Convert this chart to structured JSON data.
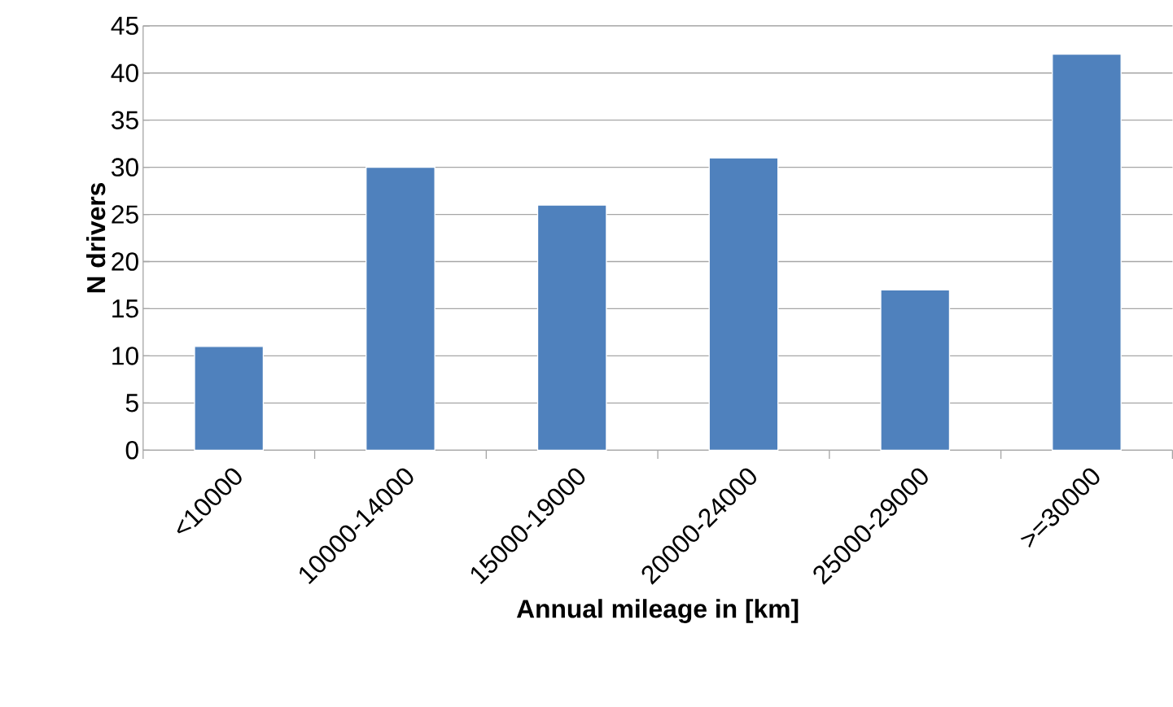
{
  "chart_data": {
    "type": "bar",
    "xlabel": "Annual mileage  in [km]",
    "ylabel": "N drivers",
    "categories": [
      "<10000",
      "10000-14000",
      "15000-19000",
      "20000-24000",
      "25000-29000",
      ">=30000"
    ],
    "values": [
      11,
      30,
      26,
      31,
      17,
      42
    ],
    "color": "#4f81bd",
    "ylim": [
      0,
      45
    ],
    "yticks": [
      0,
      5,
      10,
      15,
      20,
      25,
      30,
      35,
      40,
      45
    ],
    "grid": "y"
  }
}
